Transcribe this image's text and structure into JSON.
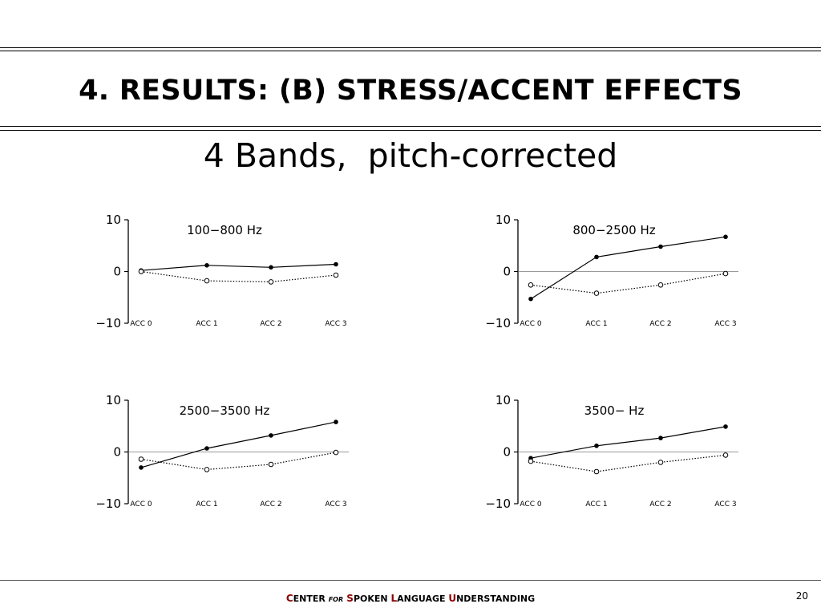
{
  "slide": {
    "title": "4. RESULTS:  (B)  STRESS/ACCENT EFFECTS",
    "subtitle": "4 Bands,  pitch-corrected"
  },
  "footer": {
    "brand_parts": [
      {
        "text": "C",
        "style": "cap"
      },
      {
        "text": "ENTER ",
        "style": "plain"
      },
      {
        "text": "FOR",
        "style": "for"
      },
      {
        "text": " S",
        "style": "cap"
      },
      {
        "text": "POKEN ",
        "style": "plain"
      },
      {
        "text": "L",
        "style": "cap"
      },
      {
        "text": "ANGUAGE ",
        "style": "plain"
      },
      {
        "text": "U",
        "style": "cap"
      },
      {
        "text": "NDERSTANDING",
        "style": "plain"
      }
    ],
    "page_number": "20"
  },
  "colors": {
    "ink": "#000000",
    "accent": "#8b0000",
    "gridline": "#777777"
  },
  "chart_data": [
    {
      "type": "line",
      "title": "100−800 Hz",
      "categories": [
        "ACC 0",
        "ACC 1",
        "ACC 2",
        "ACC 3"
      ],
      "ylim": [
        -10,
        10
      ],
      "yticks": [
        10,
        0,
        -10
      ],
      "yticklabels": [
        "10",
        "0",
        "−10"
      ],
      "zero_line": false,
      "series": [
        {
          "marker": "filled",
          "line": "solid",
          "values": [
            0.2,
            1.2,
            0.8,
            1.4
          ]
        },
        {
          "marker": "open",
          "line": "dotted",
          "values": [
            0.0,
            -1.8,
            -2.0,
            -0.7
          ]
        }
      ]
    },
    {
      "type": "line",
      "title": "800−2500 Hz",
      "categories": [
        "ACC 0",
        "ACC 1",
        "ACC 2",
        "ACC 3"
      ],
      "ylim": [
        -10,
        10
      ],
      "yticks": [
        10,
        0,
        -10
      ],
      "yticklabels": [
        "10",
        "0",
        "−10"
      ],
      "zero_line": true,
      "series": [
        {
          "marker": "filled",
          "line": "solid",
          "values": [
            -5.3,
            2.8,
            4.8,
            6.7
          ]
        },
        {
          "marker": "open",
          "line": "dotted",
          "values": [
            -2.6,
            -4.2,
            -2.6,
            -0.4
          ]
        }
      ]
    },
    {
      "type": "line",
      "title": "2500−3500 Hz",
      "categories": [
        "ACC 0",
        "ACC 1",
        "ACC 2",
        "ACC 3"
      ],
      "ylim": [
        -10,
        10
      ],
      "yticks": [
        10,
        0,
        -10
      ],
      "yticklabels": [
        "10",
        "0",
        "−10"
      ],
      "zero_line": true,
      "series": [
        {
          "marker": "filled",
          "line": "solid",
          "values": [
            -3.0,
            0.7,
            3.2,
            5.8
          ]
        },
        {
          "marker": "open",
          "line": "dotted",
          "values": [
            -1.4,
            -3.4,
            -2.4,
            -0.1
          ]
        }
      ]
    },
    {
      "type": "line",
      "title": "3500− Hz",
      "categories": [
        "ACC 0",
        "ACC 1",
        "ACC 2",
        "ACC 3"
      ],
      "ylim": [
        -10,
        10
      ],
      "yticks": [
        10,
        0,
        -10
      ],
      "yticklabels": [
        "10",
        "0",
        "−10"
      ],
      "zero_line": true,
      "series": [
        {
          "marker": "filled",
          "line": "solid",
          "values": [
            -1.2,
            1.2,
            2.7,
            4.9
          ]
        },
        {
          "marker": "open",
          "line": "dotted",
          "values": [
            -1.8,
            -3.8,
            -2.0,
            -0.6
          ]
        }
      ]
    }
  ]
}
